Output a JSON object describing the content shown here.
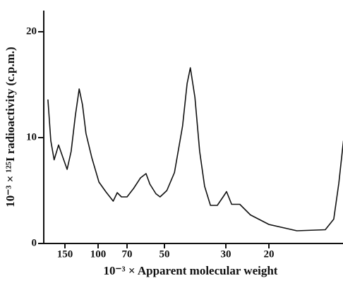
{
  "chart_data": {
    "type": "line",
    "x_label": "10⁻³ × Apparent molecular weight",
    "y_label": "10⁻³ × ¹²⁵I radioactivity (c.p.m.)",
    "xlim": [
      194,
      10
    ],
    "xticks": [
      150,
      100,
      70,
      50,
      30,
      20
    ],
    "ylim": [
      0,
      22
    ],
    "yticks": [
      0,
      10,
      20
    ],
    "series": [
      {
        "color": "#111111",
        "x": [
          184.5,
          178,
          171,
          162,
          155,
          146,
          139,
          132,
          126,
          121,
          116,
          108,
          99,
          91,
          83,
          79,
          75,
          70,
          66,
          62,
          59,
          57,
          54,
          52,
          49,
          46,
          43,
          41.4,
          40.3,
          38.8,
          37.3,
          35.8,
          34.1,
          32.2,
          30.7,
          29.8,
          28.4,
          26.3,
          23.8,
          20,
          15.4,
          11.8,
          10.9,
          10.4,
          9.96
        ],
        "values": [
          13.6,
          9.7,
          7.9,
          9.3,
          8.3,
          7.0,
          8.7,
          12.1,
          14.6,
          13.1,
          10.4,
          8.1,
          5.8,
          4.9,
          4.0,
          4.8,
          4.4,
          4.4,
          5.2,
          6.2,
          6.6,
          5.6,
          4.7,
          4.4,
          5.0,
          6.7,
          11.1,
          15.1,
          16.6,
          13.8,
          8.7,
          5.4,
          3.6,
          3.6,
          4.4,
          4.9,
          3.7,
          3.7,
          2.7,
          1.8,
          1.2,
          1.3,
          2.3,
          5.7,
          9.7
        ]
      }
    ]
  }
}
